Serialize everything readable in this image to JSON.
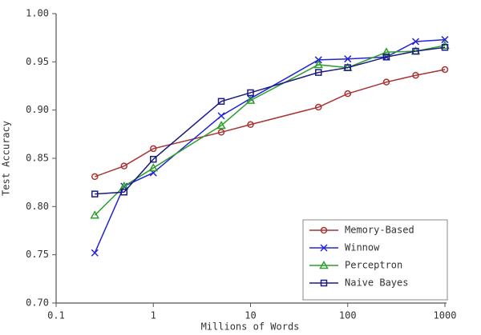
{
  "chart_data": {
    "type": "line",
    "xlabel": "Millions of Words",
    "ylabel": "Test Accuracy",
    "x": [
      0.25,
      0.5,
      1,
      5,
      10,
      50,
      100,
      250,
      500,
      1000
    ],
    "xscale": "log",
    "xlim": [
      0.1,
      1000
    ],
    "xticks": [
      0.1,
      1,
      10,
      100,
      1000
    ],
    "ylim": [
      0.7,
      1.0
    ],
    "yticks": [
      {
        "value": 0.7,
        "label": "0.70"
      },
      {
        "value": 0.75,
        "label": "0.75"
      },
      {
        "value": 0.8,
        "label": "0.80"
      },
      {
        "value": 0.85,
        "label": "0.85"
      },
      {
        "value": 0.9,
        "label": "0.90"
      },
      {
        "value": 0.95,
        "label": "0.95"
      },
      {
        "value": 1.0,
        "label": "1.00"
      }
    ],
    "legend": "lower right",
    "series": [
      {
        "name": "Memory-Based",
        "color": "#a83232",
        "marker": "circle",
        "values": [
          0.831,
          0.842,
          0.86,
          0.877,
          0.885,
          0.903,
          0.917,
          0.929,
          0.936,
          0.942
        ]
      },
      {
        "name": "Winnow",
        "color": "#2424d4",
        "marker": "x",
        "values": [
          0.752,
          0.821,
          0.835,
          0.894,
          0.912,
          0.952,
          0.953,
          0.955,
          0.971,
          0.973
        ]
      },
      {
        "name": "Perceptron",
        "color": "#2e9e2e",
        "marker": "triangle",
        "values": [
          0.791,
          0.821,
          0.84,
          0.884,
          0.91,
          0.947,
          0.944,
          0.96,
          0.961,
          0.967
        ]
      },
      {
        "name": "Naive Bayes",
        "color": "#1a1a80",
        "marker": "square",
        "values": [
          0.813,
          0.815,
          0.849,
          0.909,
          0.918,
          0.939,
          0.944,
          0.955,
          0.961,
          0.965
        ]
      }
    ]
  }
}
